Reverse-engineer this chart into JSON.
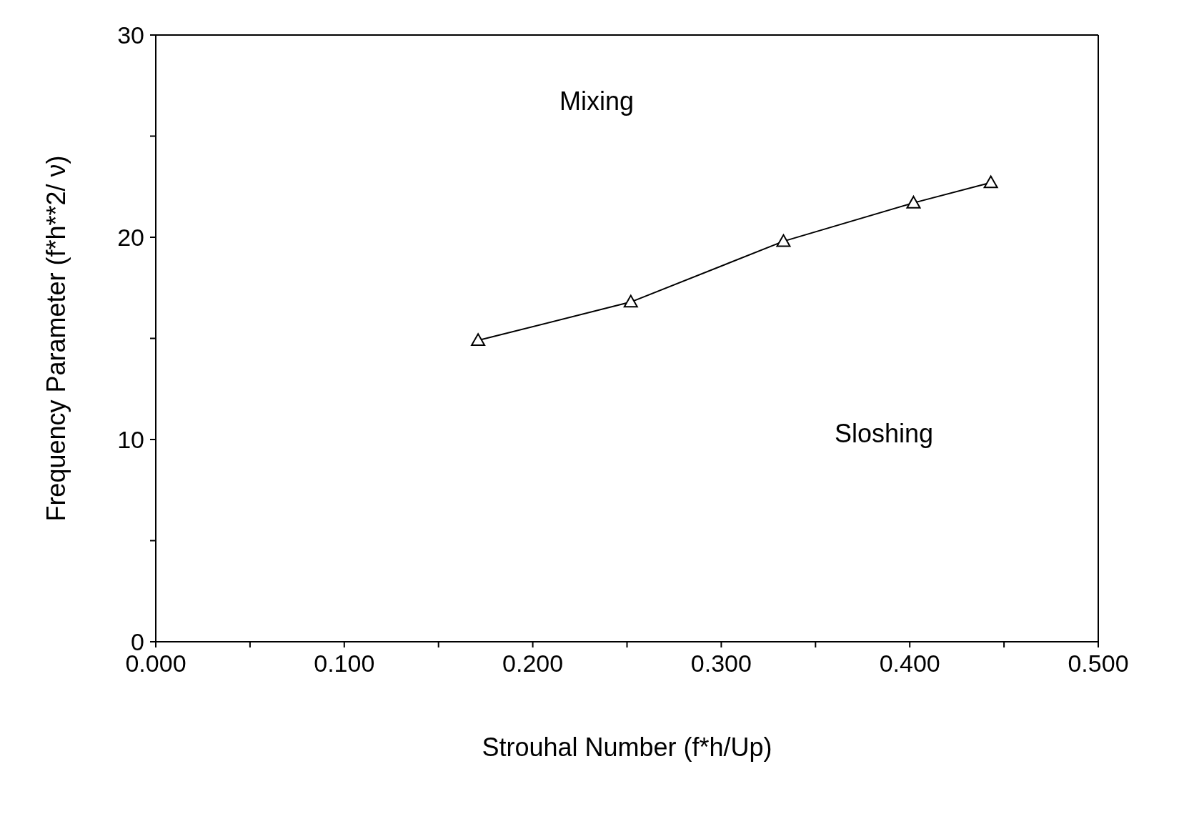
{
  "chart_data": {
    "type": "line",
    "xlabel": "Strouhal Number (f*h/Up)",
    "ylabel": "Frequency Parameter (f*h**2/ ν)",
    "x": [
      0.171,
      0.252,
      0.333,
      0.402,
      0.443
    ],
    "series": [
      {
        "color": "#000000",
        "values": [
          14.9,
          16.8,
          19.8,
          21.7,
          22.7
        ]
      }
    ],
    "xlim": [
      0,
      0.5
    ],
    "xticks": [
      {
        "value": 0,
        "label": "0.000"
      },
      {
        "value": 0.05,
        "label": null
      },
      {
        "value": 0.1,
        "label": "0.100"
      },
      {
        "value": 0.15,
        "label": null
      },
      {
        "value": 0.2,
        "label": "0.200"
      },
      {
        "value": 0.25,
        "label": null
      },
      {
        "value": 0.3,
        "label": "0.300"
      },
      {
        "value": 0.35,
        "label": null
      },
      {
        "value": 0.4,
        "label": "0.400"
      },
      {
        "value": 0.45,
        "label": null
      },
      {
        "value": 0.5,
        "label": "0.500"
      }
    ],
    "ylim": [
      0,
      30
    ],
    "yticks": [
      0,
      {
        "value": 5,
        "label": null
      },
      10,
      {
        "value": 15,
        "label": null
      },
      20,
      {
        "value": 25,
        "label": null
      },
      30
    ],
    "annotations": [
      "Mixing",
      "Sloshing"
    ],
    "marker": "triangle",
    "line_style": "solid",
    "grid": false,
    "legend": false
  }
}
